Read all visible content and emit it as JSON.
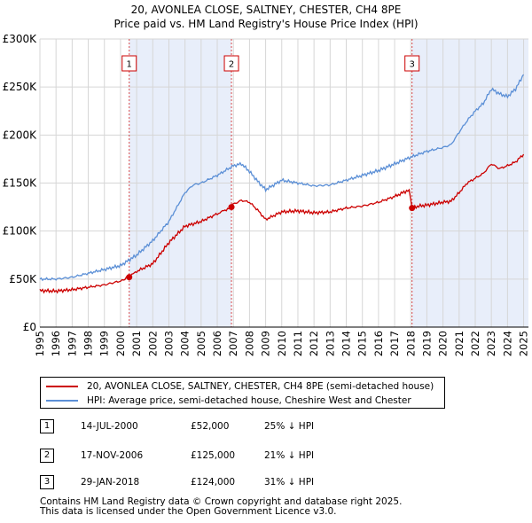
{
  "title": {
    "line1": "20, AVONLEA CLOSE, SALTNEY, CHESTER, CH4 8PE",
    "line2": "Price paid vs. HM Land Registry's House Price Index (HPI)"
  },
  "colors": {
    "price_line": "#cc0000",
    "hpi_line": "#5b8fd6",
    "shade": "#e8eefa",
    "grid": "#d6d6d6"
  },
  "chart_data": {
    "type": "line",
    "title": "Price paid vs. HM Land Registry's House Price Index (HPI)",
    "xlabel": "",
    "ylabel": "",
    "xlim": [
      1995.0,
      2025.3
    ],
    "ylim": [
      0,
      300000
    ],
    "y_ticks": [
      0,
      50000,
      100000,
      150000,
      200000,
      250000,
      300000
    ],
    "y_tick_labels": [
      "£0",
      "£50K",
      "£100K",
      "£150K",
      "£200K",
      "£250K",
      "£300K"
    ],
    "x_ticks": [
      1995,
      1996,
      1997,
      1998,
      1999,
      2000,
      2001,
      2002,
      2003,
      2004,
      2005,
      2006,
      2007,
      2008,
      2009,
      2010,
      2011,
      2012,
      2013,
      2014,
      2015,
      2016,
      2017,
      2018,
      2019,
      2020,
      2021,
      2022,
      2023,
      2024,
      2025
    ],
    "grid": true,
    "series": [
      {
        "name": "20, AVONLEA CLOSE, SALTNEY, CHESTER, CH4 8PE (semi-detached house)",
        "color": "#cc0000",
        "x": [
          1995.0,
          1996.0,
          1997.0,
          1998.0,
          1999.0,
          2000.0,
          2000.54,
          2001.0,
          2002.0,
          2003.0,
          2004.0,
          2005.0,
          2006.0,
          2006.88,
          2007.0,
          2007.5,
          2008.0,
          2008.5,
          2009.0,
          2009.5,
          2010.0,
          2011.0,
          2012.0,
          2013.0,
          2014.0,
          2015.0,
          2016.0,
          2017.0,
          2017.9,
          2018.08,
          2018.5,
          2019.0,
          2020.0,
          2020.5,
          2021.0,
          2021.5,
          2022.0,
          2022.5,
          2023.0,
          2023.5,
          2024.0,
          2024.5,
          2025.0
        ],
        "values": [
          38000,
          37500,
          39000,
          41500,
          44000,
          48000,
          52000,
          58000,
          66000,
          88000,
          105000,
          110000,
          118000,
          125000,
          128000,
          132000,
          130000,
          122000,
          112000,
          116000,
          120000,
          121000,
          119000,
          120000,
          124000,
          126000,
          130000,
          136000,
          143000,
          124000,
          126000,
          127000,
          130000,
          131000,
          140000,
          150000,
          155000,
          160000,
          170000,
          165000,
          168000,
          172000,
          180000
        ]
      },
      {
        "name": "HPI: Average price, semi-detached house, Cheshire West and Chester",
        "color": "#5b8fd6",
        "x": [
          1995.0,
          1996.0,
          1997.0,
          1998.0,
          1999.0,
          2000.0,
          2001.0,
          2002.0,
          2003.0,
          2004.0,
          2004.5,
          2005.0,
          2006.0,
          2007.0,
          2007.5,
          2008.0,
          2008.5,
          2009.0,
          2009.5,
          2010.0,
          2011.0,
          2012.0,
          2013.0,
          2014.0,
          2015.0,
          2016.0,
          2017.0,
          2018.0,
          2019.0,
          2020.0,
          2020.5,
          2021.0,
          2021.5,
          2022.0,
          2022.5,
          2023.0,
          2023.5,
          2024.0,
          2024.5,
          2025.0
        ],
        "values": [
          50000,
          50000,
          52000,
          56000,
          60000,
          64000,
          75000,
          90000,
          110000,
          140000,
          148000,
          150000,
          158000,
          168000,
          170000,
          162000,
          152000,
          143000,
          148000,
          153000,
          150000,
          147000,
          148000,
          153000,
          158000,
          163000,
          170000,
          177000,
          183000,
          187000,
          190000,
          203000,
          215000,
          225000,
          233000,
          248000,
          243000,
          240000,
          248000,
          263000
        ]
      }
    ],
    "sale_markers": [
      {
        "id": "1",
        "x": 2000.54,
        "value": 52000
      },
      {
        "id": "2",
        "x": 2006.88,
        "value": 125000
      },
      {
        "id": "3",
        "x": 2018.08,
        "value": 124000
      }
    ],
    "shaded_ranges": [
      [
        2000.54,
        2006.88
      ],
      [
        2018.08,
        2025.3
      ]
    ]
  },
  "legend": {
    "entries": [
      {
        "label": "20, AVONLEA CLOSE, SALTNEY, CHESTER, CH4 8PE (semi-detached house)",
        "color": "#cc0000"
      },
      {
        "label": "HPI: Average price, semi-detached house, Cheshire West and Chester",
        "color": "#5b8fd6"
      }
    ]
  },
  "sales": [
    {
      "id": "1",
      "date": "14-JUL-2000",
      "price": "£52,000",
      "hpi": "25% ↓ HPI"
    },
    {
      "id": "2",
      "date": "17-NOV-2006",
      "price": "£125,000",
      "hpi": "21% ↓ HPI"
    },
    {
      "id": "3",
      "date": "29-JAN-2018",
      "price": "£124,000",
      "hpi": "31% ↓ HPI"
    }
  ],
  "footer": {
    "line1": "Contains HM Land Registry data © Crown copyright and database right 2025.",
    "line2": "This data is licensed under the Open Government Licence v3.0."
  }
}
